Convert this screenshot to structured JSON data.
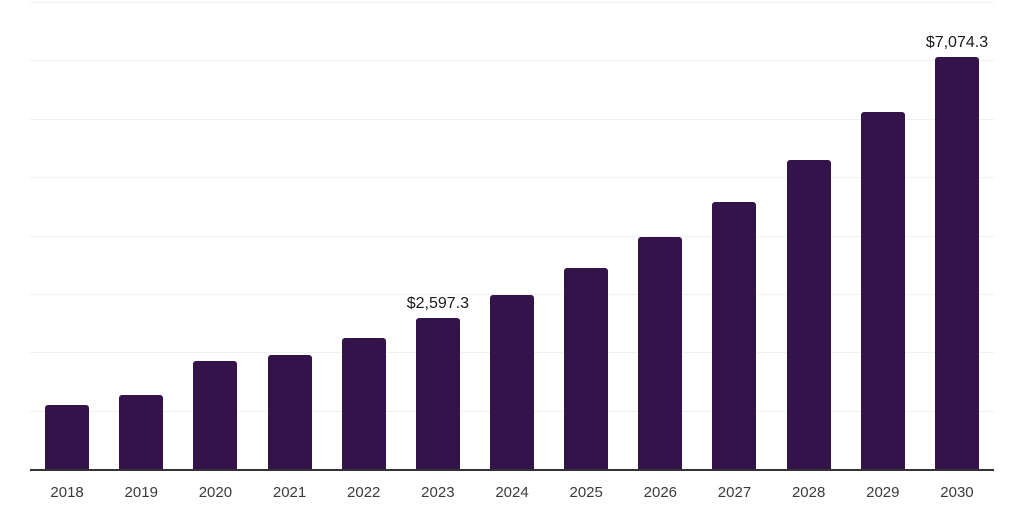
{
  "chart": {
    "background_color": "#ffffff",
    "bar_color": "#34124a",
    "axis_line_color": "#333333",
    "gridline_color": "#f1f1f3",
    "data_label_color": "#1a1a1a",
    "tick_label_color": "#3b3b3b"
  },
  "chart_data": {
    "type": "bar",
    "title": "",
    "xlabel": "",
    "ylabel": "",
    "categories": [
      "2018",
      "2019",
      "2020",
      "2021",
      "2022",
      "2023",
      "2024",
      "2025",
      "2026",
      "2027",
      "2028",
      "2029",
      "2030"
    ],
    "values": [
      1110,
      1280,
      1865,
      1965,
      2255,
      2597.3,
      2990,
      3455,
      3990,
      4590,
      5310,
      6140,
      7074.3
    ],
    "point_labels": [
      "",
      "",
      "",
      "",
      "",
      "$2,597.3",
      "",
      "",
      "",
      "",
      "",
      "",
      "$7,074.3"
    ],
    "ylim": [
      0,
      8000
    ],
    "gridline_step": 1000,
    "grid": "horizontal",
    "y_tick_labels_visible": false,
    "legend": "none"
  }
}
